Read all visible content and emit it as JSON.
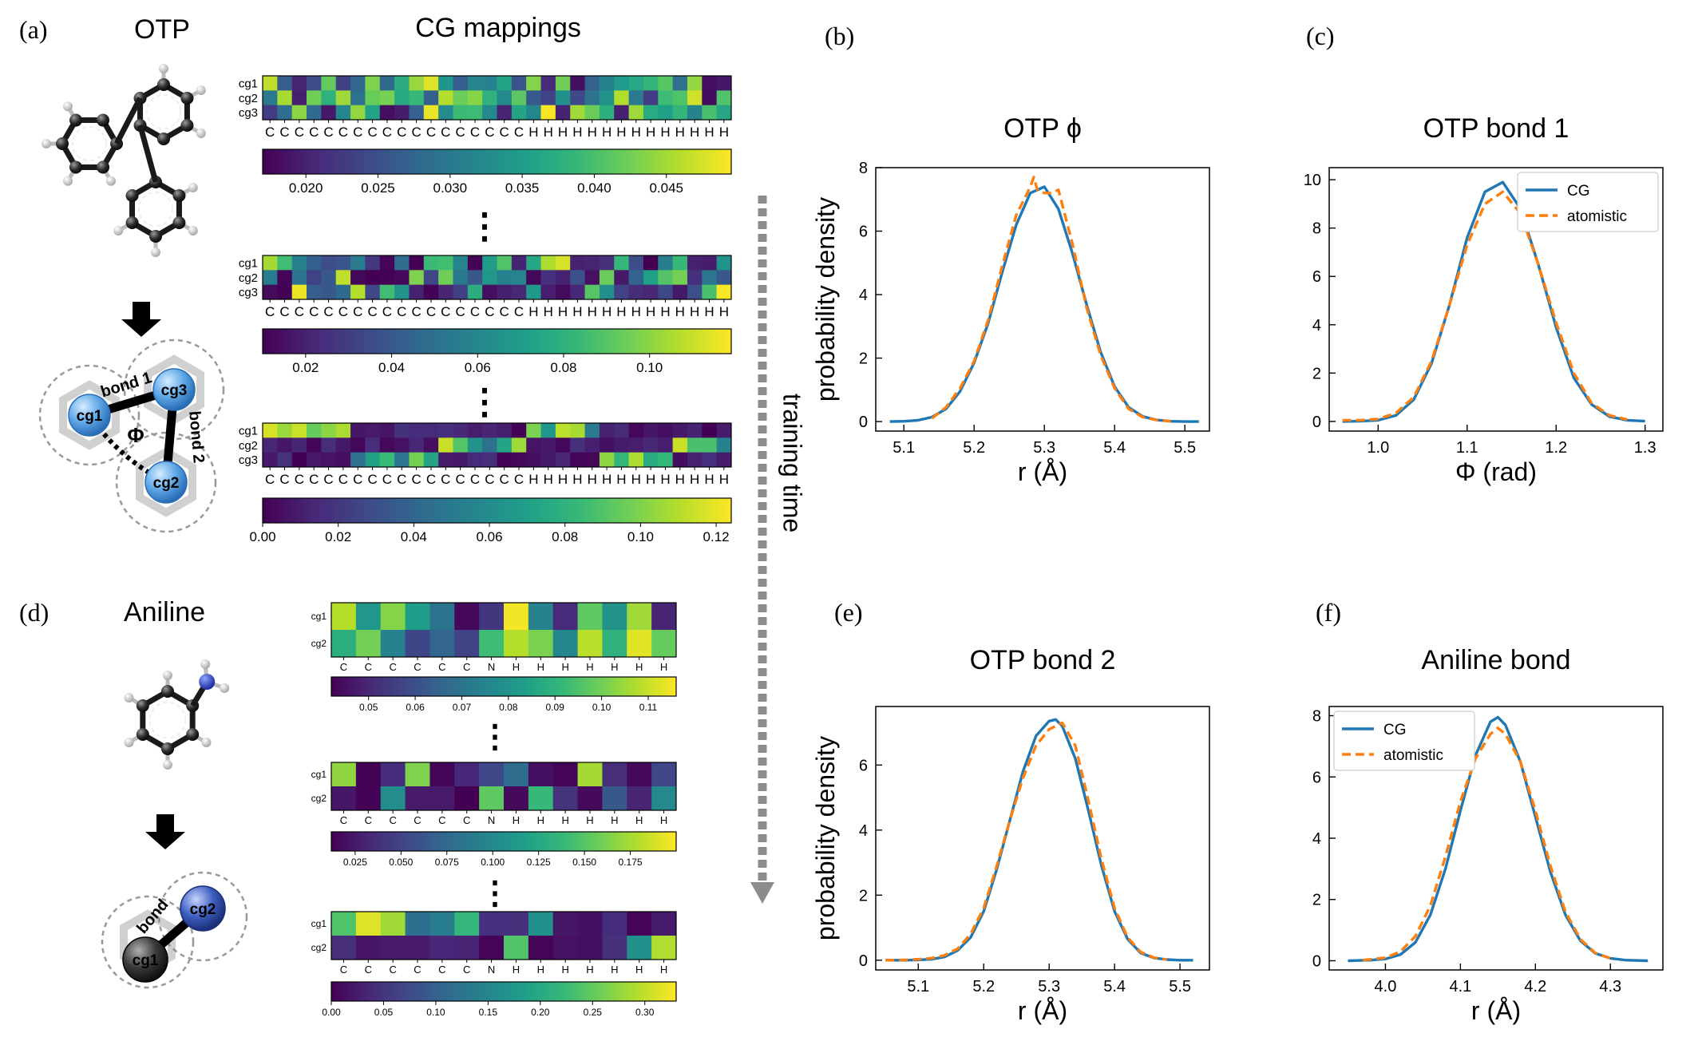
{
  "figure": {
    "panel_labels": {
      "a": "(a)",
      "b": "(b)",
      "c": "(c)",
      "d": "(d)",
      "e": "(e)",
      "f": "(f)"
    },
    "otp_title": "OTP",
    "cg_mappings_title": "CG mappings",
    "aniline_title": "Aniline",
    "training_time_label": "training time",
    "ellipsis": "⋮",
    "otp_cg_labels": [
      "cg1",
      "cg2",
      "cg3"
    ],
    "aniline_cg_labels": [
      "cg1",
      "cg2"
    ],
    "otp_bond1_label": "bond 1",
    "otp_bond2_label": "bond 2",
    "otp_angle_label": "Φ",
    "aniline_bond_label": "bond"
  },
  "colors": {
    "cg_line": "#1f77b4",
    "atomistic_line": "#ff7f0e",
    "viridis": [
      "#440154",
      "#482878",
      "#3e4989",
      "#31688e",
      "#26828e",
      "#1f9e89",
      "#35b779",
      "#6ece58",
      "#b5de2b",
      "#fde725"
    ],
    "bead_blue": "#5fa8e8",
    "bead_navy": "#2f4fa8",
    "bead_black": "#2a2a2a",
    "arrow_gray": "#8c8c8c"
  },
  "heatmaps": {
    "otp": [
      {
        "rows": [
          "cg1",
          "cg2",
          "cg3"
        ],
        "atoms": [
          "C",
          "C",
          "C",
          "C",
          "C",
          "C",
          "C",
          "C",
          "C",
          "C",
          "C",
          "C",
          "C",
          "C",
          "C",
          "C",
          "C",
          "C",
          "H",
          "H",
          "H",
          "H",
          "H",
          "H",
          "H",
          "H",
          "H",
          "H",
          "H",
          "H",
          "H",
          "H"
        ],
        "ticks": [
          "0.020",
          "0.025",
          "0.030",
          "0.035",
          "0.040",
          "0.045"
        ],
        "tick_values": [
          0.02,
          0.025,
          0.03,
          0.035,
          0.04,
          0.045
        ],
        "vmin": 0.017,
        "vmax": 0.0495,
        "seed": 11
      },
      {
        "rows": [
          "cg1",
          "cg2",
          "cg3"
        ],
        "atoms": [
          "C",
          "C",
          "C",
          "C",
          "C",
          "C",
          "C",
          "C",
          "C",
          "C",
          "C",
          "C",
          "C",
          "C",
          "C",
          "C",
          "C",
          "C",
          "H",
          "H",
          "H",
          "H",
          "H",
          "H",
          "H",
          "H",
          "H",
          "H",
          "H",
          "H",
          "H",
          "H"
        ],
        "ticks": [
          "0.02",
          "0.04",
          "0.06",
          "0.08",
          "0.10"
        ],
        "tick_values": [
          0.02,
          0.04,
          0.06,
          0.08,
          0.1
        ],
        "vmin": 0.01,
        "vmax": 0.119,
        "seed": 23
      },
      {
        "rows": [
          "cg1",
          "cg2",
          "cg3"
        ],
        "atoms": [
          "C",
          "C",
          "C",
          "C",
          "C",
          "C",
          "C",
          "C",
          "C",
          "C",
          "C",
          "C",
          "C",
          "C",
          "C",
          "C",
          "C",
          "C",
          "H",
          "H",
          "H",
          "H",
          "H",
          "H",
          "H",
          "H",
          "H",
          "H",
          "H",
          "H",
          "H",
          "H"
        ],
        "ticks": [
          "0.00",
          "0.02",
          "0.04",
          "0.06",
          "0.08",
          "0.10",
          "0.12"
        ],
        "tick_values": [
          0,
          0.02,
          0.04,
          0.06,
          0.08,
          0.1,
          0.12
        ],
        "vmin": 0,
        "vmax": 0.124,
        "seed": 37
      }
    ],
    "aniline": [
      {
        "rows": [
          "cg1",
          "cg2"
        ],
        "atoms": [
          "C",
          "C",
          "C",
          "C",
          "C",
          "C",
          "N",
          "H",
          "H",
          "H",
          "H",
          "H",
          "H",
          "H"
        ],
        "ticks": [
          "0.05",
          "0.06",
          "0.07",
          "0.08",
          "0.09",
          "0.10",
          "0.11"
        ],
        "tick_values": [
          0.05,
          0.06,
          0.07,
          0.08,
          0.09,
          0.1,
          0.11
        ],
        "vmin": 0.042,
        "vmax": 0.116,
        "seed": 5
      },
      {
        "rows": [
          "cg1",
          "cg2"
        ],
        "atoms": [
          "C",
          "C",
          "C",
          "C",
          "C",
          "C",
          "N",
          "H",
          "H",
          "H",
          "H",
          "H",
          "H",
          "H"
        ],
        "ticks": [
          "0.025",
          "0.050",
          "0.075",
          "0.100",
          "0.125",
          "0.150",
          "0.175"
        ],
        "tick_values": [
          0.025,
          0.05,
          0.075,
          0.1,
          0.125,
          0.15,
          0.175
        ],
        "vmin": 0.012,
        "vmax": 0.2,
        "seed": 17
      },
      {
        "rows": [
          "cg1",
          "cg2"
        ],
        "atoms": [
          "C",
          "C",
          "C",
          "C",
          "C",
          "C",
          "N",
          "H",
          "H",
          "H",
          "H",
          "H",
          "H",
          "H"
        ],
        "ticks": [
          "0.00",
          "0.05",
          "0.10",
          "0.15",
          "0.20",
          "0.25",
          "0.30"
        ],
        "tick_values": [
          0,
          0.05,
          0.1,
          0.15,
          0.2,
          0.25,
          0.3
        ],
        "vmin": 0,
        "vmax": 0.33,
        "seed": 29
      }
    ]
  },
  "chart_data": [
    {
      "type": "line",
      "panel": "(b)",
      "title": "OTP  ϕ",
      "xlabel": "r (Å)",
      "ylabel": "probability density",
      "xlim": [
        5.06,
        5.535
      ],
      "ylim": [
        -0.3,
        8.0
      ],
      "xticks": [
        5.1,
        5.2,
        5.3,
        5.4,
        5.5
      ],
      "xtick_labels": [
        "5.1",
        "5.2",
        "5.3",
        "5.4",
        "5.5"
      ],
      "yticks": [
        0,
        2,
        4,
        6,
        8
      ],
      "ytick_labels": [
        "0",
        "2",
        "4",
        "6",
        "8"
      ],
      "legend": null,
      "series": [
        {
          "role": "CG",
          "x": [
            5.08,
            5.1,
            5.12,
            5.14,
            5.16,
            5.18,
            5.2,
            5.22,
            5.24,
            5.26,
            5.28,
            5.3,
            5.32,
            5.34,
            5.36,
            5.38,
            5.4,
            5.42,
            5.44,
            5.46,
            5.48,
            5.5,
            5.52
          ],
          "y": [
            0.0,
            0.01,
            0.04,
            0.14,
            0.4,
            0.95,
            1.85,
            3.1,
            4.7,
            6.2,
            7.2,
            7.4,
            6.7,
            5.3,
            3.7,
            2.2,
            1.1,
            0.45,
            0.16,
            0.05,
            0.01,
            0.0,
            0.0
          ]
        },
        {
          "role": "atomistic",
          "x": [
            5.14,
            5.16,
            5.18,
            5.2,
            5.22,
            5.24,
            5.26,
            5.28,
            5.285,
            5.29,
            5.3,
            5.31,
            5.32,
            5.34,
            5.36,
            5.38,
            5.4,
            5.42,
            5.44,
            5.46,
            5.48
          ],
          "y": [
            0.1,
            0.45,
            1.05,
            1.9,
            3.2,
            4.9,
            6.5,
            7.4,
            7.7,
            7.3,
            7.2,
            7.2,
            7.3,
            5.6,
            3.6,
            2.1,
            1.05,
            0.4,
            0.14,
            0.05,
            0.01
          ]
        }
      ]
    },
    {
      "type": "line",
      "panel": "(c)",
      "title": "OTP bond 1",
      "xlabel": "Φ (rad)",
      "ylabel": "",
      "xlim": [
        0.945,
        1.32
      ],
      "ylim": [
        -0.4,
        10.5
      ],
      "xticks": [
        1.0,
        1.1,
        1.2,
        1.3
      ],
      "xtick_labels": [
        "1.0",
        "1.1",
        "1.2",
        "1.3"
      ],
      "yticks": [
        0,
        2,
        4,
        6,
        8,
        10
      ],
      "ytick_labels": [
        "0",
        "2",
        "4",
        "6",
        "8",
        "10"
      ],
      "legend": "top-right",
      "series": [
        {
          "name": "CG",
          "role": "CG",
          "x": [
            0.96,
            0.98,
            1.0,
            1.02,
            1.04,
            1.06,
            1.08,
            1.1,
            1.12,
            1.14,
            1.16,
            1.18,
            1.2,
            1.22,
            1.24,
            1.26,
            1.28,
            1.3
          ],
          "y": [
            0.0,
            0.01,
            0.05,
            0.25,
            0.9,
            2.4,
            4.8,
            7.6,
            9.5,
            9.9,
            8.8,
            6.5,
            3.9,
            1.8,
            0.7,
            0.2,
            0.05,
            0.01
          ]
        },
        {
          "name": "atomistic",
          "role": "atomistic",
          "x": [
            0.96,
            0.98,
            1.0,
            1.02,
            1.04,
            1.06,
            1.08,
            1.1,
            1.12,
            1.14,
            1.16,
            1.18,
            1.2,
            1.22,
            1.24,
            1.26,
            1.28
          ],
          "y": [
            0.05,
            0.05,
            0.1,
            0.35,
            1.0,
            2.5,
            4.8,
            7.3,
            9.0,
            9.5,
            8.6,
            6.5,
            4.1,
            2.0,
            0.75,
            0.25,
            0.08
          ]
        }
      ]
    },
    {
      "type": "line",
      "panel": "(e)",
      "title": "OTP bond 2",
      "xlabel": "r (Å)",
      "ylabel": "probability density",
      "xlim": [
        5.035,
        5.545
      ],
      "ylim": [
        -0.3,
        7.8
      ],
      "xticks": [
        5.1,
        5.2,
        5.3,
        5.4,
        5.5
      ],
      "xtick_labels": [
        "5.1",
        "5.2",
        "5.3",
        "5.4",
        "5.5"
      ],
      "yticks": [
        0,
        2,
        4,
        6
      ],
      "ytick_labels": [
        "0",
        "2",
        "4",
        "6"
      ],
      "legend": null,
      "series": [
        {
          "role": "CG",
          "x": [
            5.05,
            5.08,
            5.1,
            5.12,
            5.14,
            5.16,
            5.18,
            5.2,
            5.22,
            5.24,
            5.26,
            5.28,
            5.3,
            5.31,
            5.32,
            5.34,
            5.36,
            5.38,
            5.4,
            5.42,
            5.44,
            5.46,
            5.48,
            5.5,
            5.52
          ],
          "y": [
            0.0,
            0.0,
            0.01,
            0.03,
            0.1,
            0.3,
            0.7,
            1.5,
            2.8,
            4.3,
            5.8,
            6.9,
            7.35,
            7.4,
            7.2,
            6.2,
            4.6,
            2.9,
            1.5,
            0.65,
            0.22,
            0.07,
            0.02,
            0.0,
            0.0
          ]
        },
        {
          "role": "atomistic",
          "x": [
            5.05,
            5.08,
            5.1,
            5.12,
            5.14,
            5.16,
            5.18,
            5.2,
            5.22,
            5.24,
            5.26,
            5.28,
            5.3,
            5.32,
            5.34,
            5.36,
            5.38,
            5.4,
            5.42,
            5.44,
            5.46,
            5.48
          ],
          "y": [
            0.0,
            0.01,
            0.03,
            0.06,
            0.15,
            0.35,
            0.8,
            1.6,
            2.9,
            4.3,
            5.6,
            6.6,
            7.1,
            7.3,
            6.6,
            4.9,
            3.1,
            1.6,
            0.7,
            0.25,
            0.08,
            0.02
          ]
        }
      ]
    },
    {
      "type": "line",
      "panel": "(f)",
      "title": "Aniline bond",
      "xlabel": "r (Å)",
      "ylabel": "",
      "xlim": [
        3.925,
        4.37
      ],
      "ylim": [
        -0.3,
        8.3
      ],
      "xticks": [
        4.0,
        4.1,
        4.2,
        4.3
      ],
      "xtick_labels": [
        "4.0",
        "4.1",
        "4.2",
        "4.3"
      ],
      "yticks": [
        0,
        2,
        4,
        6,
        8
      ],
      "ytick_labels": [
        "0",
        "2",
        "4",
        "6",
        "8"
      ],
      "legend": "top-left",
      "series": [
        {
          "name": "CG",
          "role": "CG",
          "x": [
            3.95,
            3.98,
            4.0,
            4.02,
            4.04,
            4.06,
            4.08,
            4.1,
            4.12,
            4.14,
            4.15,
            4.16,
            4.18,
            4.2,
            4.22,
            4.24,
            4.26,
            4.28,
            4.3,
            4.32,
            4.35
          ],
          "y": [
            0.0,
            0.02,
            0.06,
            0.2,
            0.6,
            1.5,
            3.0,
            4.9,
            6.7,
            7.8,
            7.95,
            7.7,
            6.5,
            4.7,
            2.9,
            1.5,
            0.65,
            0.24,
            0.08,
            0.02,
            0.0
          ]
        },
        {
          "name": "atomistic",
          "role": "atomistic",
          "x": [
            3.97,
            4.0,
            4.02,
            4.04,
            4.06,
            4.08,
            4.1,
            4.12,
            4.14,
            4.15,
            4.16,
            4.18,
            4.2,
            4.22,
            4.24,
            4.26,
            4.28,
            4.3
          ],
          "y": [
            0.02,
            0.1,
            0.3,
            0.8,
            1.8,
            3.4,
            5.2,
            6.6,
            7.4,
            7.6,
            7.4,
            6.5,
            4.9,
            3.1,
            1.6,
            0.7,
            0.25,
            0.08
          ]
        }
      ]
    }
  ]
}
